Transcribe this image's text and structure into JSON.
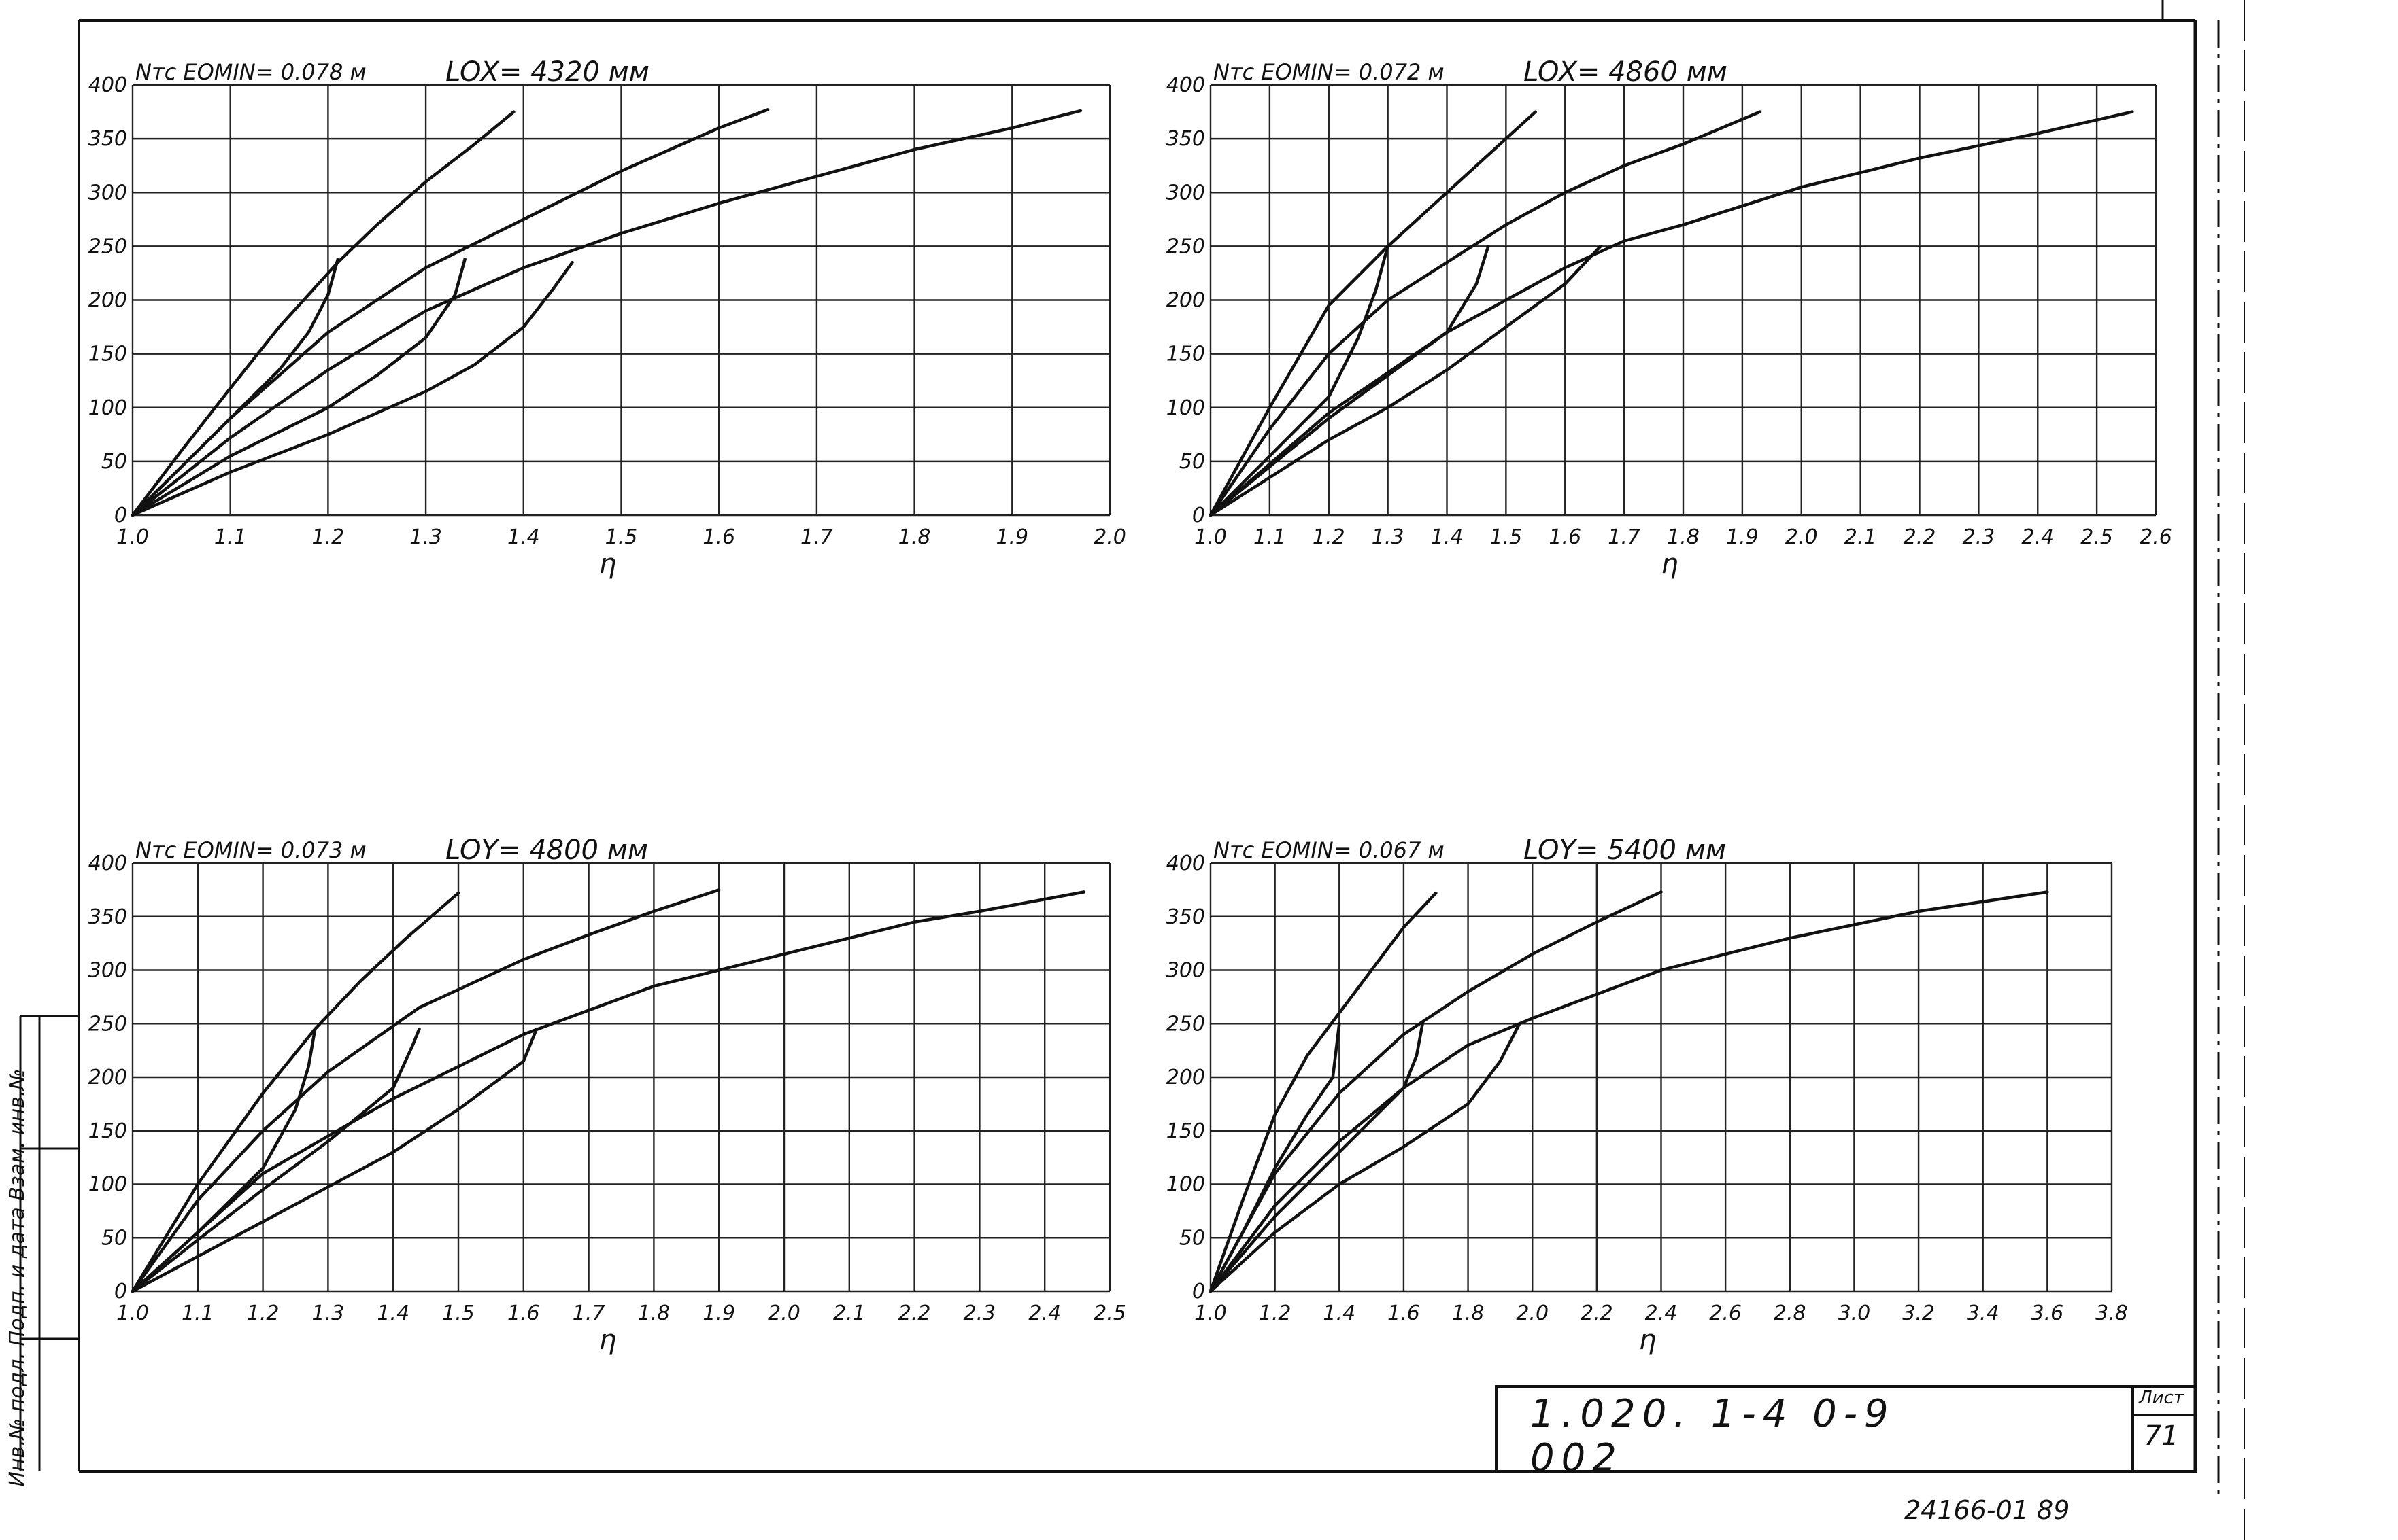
{
  "document": {
    "designation": "1.020. 1-4 0-9 002",
    "sheet_label": "Лист",
    "sheet_number": "71",
    "archive_number": "24166-01  89",
    "side_stamp": "Инв.№ подл.   Подп. и дата   Взам. инв.№"
  },
  "chart_data": [
    {
      "type": "line",
      "title": "Nтс   EOMIN= 0.078 м",
      "subtitle": "LOX= 4320 мм",
      "xlabel": "η",
      "ylabel": "",
      "xlim": [
        1.0,
        2.0
      ],
      "ylim": [
        0,
        400
      ],
      "x_ticks": [
        1.0,
        1.1,
        1.2,
        1.3,
        1.4,
        1.5,
        1.6,
        1.7,
        1.8,
        1.9,
        2.0
      ],
      "x_tick_labels": [
        "1.0",
        "1.1",
        "1.2",
        "1.3",
        "1.4",
        "1.5",
        "1.6",
        "1.7",
        "1.8",
        "1.9",
        "2.0"
      ],
      "y_ticks": [
        0,
        50,
        100,
        150,
        200,
        250,
        300,
        350,
        400
      ],
      "y_tick_labels": [
        "0",
        "50",
        "100",
        "150",
        "200",
        "250",
        "300",
        "350",
        "400"
      ],
      "grid": true,
      "series": [
        {
          "x": [
            1.0,
            1.05,
            1.1,
            1.15,
            1.21,
            1.25,
            1.3,
            1.35,
            1.39
          ],
          "y": [
            0,
            60,
            118,
            175,
            235,
            270,
            310,
            345,
            375
          ]
        },
        {
          "x": [
            1.0,
            1.1,
            1.2,
            1.3,
            1.4,
            1.5,
            1.6,
            1.65
          ],
          "y": [
            0,
            90,
            170,
            230,
            275,
            320,
            360,
            377
          ]
        },
        {
          "x": [
            1.0,
            1.1,
            1.2,
            1.3,
            1.4,
            1.5,
            1.6,
            1.7,
            1.8,
            1.9,
            1.97
          ],
          "y": [
            0,
            72,
            135,
            190,
            230,
            262,
            290,
            315,
            340,
            360,
            376
          ]
        },
        {
          "x": [
            1.0,
            1.05,
            1.1,
            1.15,
            1.18,
            1.2,
            1.21
          ],
          "y": [
            0,
            45,
            90,
            135,
            170,
            205,
            238
          ]
        },
        {
          "x": [
            1.0,
            1.1,
            1.2,
            1.25,
            1.3,
            1.33,
            1.34
          ],
          "y": [
            0,
            55,
            100,
            130,
            165,
            205,
            238
          ]
        },
        {
          "x": [
            1.0,
            1.1,
            1.2,
            1.3,
            1.35,
            1.4,
            1.43,
            1.45
          ],
          "y": [
            0,
            40,
            75,
            115,
            140,
            175,
            210,
            235
          ]
        }
      ]
    },
    {
      "type": "line",
      "title": "Nтс   EOMIN= 0.072 м",
      "subtitle": "LOX= 4860 мм",
      "xlabel": "η",
      "ylabel": "",
      "xlim": [
        1.0,
        2.6
      ],
      "ylim": [
        0,
        400
      ],
      "x_ticks": [
        1.0,
        1.1,
        1.2,
        1.3,
        1.4,
        1.5,
        1.6,
        1.7,
        1.8,
        1.9,
        2.0,
        2.1,
        2.2,
        2.3,
        2.4,
        2.5,
        2.6
      ],
      "x_tick_labels": [
        "1.0",
        "1.1",
        "1.2",
        "1.3",
        "1.4",
        "1.5",
        "1.6",
        "1.7",
        "1.8",
        "1.9",
        "2.0",
        "2.1",
        "2.2",
        "2.3",
        "2.4",
        "2.5",
        "2.6"
      ],
      "y_ticks": [
        0,
        50,
        100,
        150,
        200,
        250,
        300,
        350,
        400
      ],
      "y_tick_labels": [
        "0",
        "50",
        "100",
        "150",
        "200",
        "250",
        "300",
        "350",
        "400"
      ],
      "grid": true,
      "series": [
        {
          "x": [
            1.0,
            1.1,
            1.2,
            1.3,
            1.4,
            1.5,
            1.55
          ],
          "y": [
            0,
            100,
            195,
            250,
            300,
            350,
            375
          ]
        },
        {
          "x": [
            1.0,
            1.1,
            1.2,
            1.3,
            1.4,
            1.5,
            1.6,
            1.7,
            1.8,
            1.93
          ],
          "y": [
            0,
            80,
            150,
            200,
            235,
            270,
            300,
            325,
            345,
            375
          ]
        },
        {
          "x": [
            1.0,
            1.2,
            1.4,
            1.6,
            1.7,
            1.8,
            2.0,
            2.2,
            2.4,
            2.56
          ],
          "y": [
            0,
            95,
            170,
            230,
            255,
            270,
            305,
            332,
            355,
            375
          ]
        },
        {
          "x": [
            1.0,
            1.1,
            1.2,
            1.25,
            1.28,
            1.3
          ],
          "y": [
            0,
            55,
            110,
            165,
            210,
            250
          ]
        },
        {
          "x": [
            1.0,
            1.1,
            1.2,
            1.3,
            1.4,
            1.45,
            1.47
          ],
          "y": [
            0,
            45,
            90,
            130,
            170,
            215,
            250
          ]
        },
        {
          "x": [
            1.0,
            1.1,
            1.2,
            1.3,
            1.4,
            1.5,
            1.6,
            1.66
          ],
          "y": [
            0,
            35,
            70,
            100,
            135,
            175,
            215,
            250
          ]
        }
      ]
    },
    {
      "type": "line",
      "title": "Nтс   EOMIN= 0.073 м",
      "subtitle": "LOY= 4800 мм",
      "xlabel": "η",
      "ylabel": "",
      "xlim": [
        1.0,
        2.5
      ],
      "ylim": [
        0,
        400
      ],
      "x_ticks": [
        1.0,
        1.1,
        1.2,
        1.3,
        1.4,
        1.5,
        1.6,
        1.7,
        1.8,
        1.9,
        2.0,
        2.1,
        2.2,
        2.3,
        2.4,
        2.5
      ],
      "x_tick_labels": [
        "1.0",
        "1.1",
        "1.2",
        "1.3",
        "1.4",
        "1.5",
        "1.6",
        "1.7",
        "1.8",
        "1.9",
        "2.0",
        "2.1",
        "2.2",
        "2.3",
        "2.4",
        "2.5"
      ],
      "y_ticks": [
        0,
        50,
        100,
        150,
        200,
        250,
        300,
        350,
        400
      ],
      "y_tick_labels": [
        "0",
        "50",
        "100",
        "150",
        "200",
        "250",
        "300",
        "350",
        "400"
      ],
      "grid": true,
      "series": [
        {
          "x": [
            1.0,
            1.1,
            1.2,
            1.28,
            1.35,
            1.42,
            1.5
          ],
          "y": [
            0,
            100,
            185,
            245,
            290,
            330,
            372
          ]
        },
        {
          "x": [
            1.0,
            1.1,
            1.2,
            1.3,
            1.44,
            1.6,
            1.7,
            1.8,
            1.9
          ],
          "y": [
            0,
            85,
            150,
            205,
            265,
            310,
            333,
            355,
            375
          ]
        },
        {
          "x": [
            1.0,
            1.2,
            1.4,
            1.6,
            1.8,
            1.9,
            2.0,
            2.2,
            2.3,
            2.46
          ],
          "y": [
            0,
            110,
            180,
            240,
            285,
            300,
            315,
            345,
            355,
            373
          ]
        },
        {
          "x": [
            1.0,
            1.1,
            1.2,
            1.25,
            1.27,
            1.28
          ],
          "y": [
            0,
            55,
            115,
            170,
            210,
            245
          ]
        },
        {
          "x": [
            1.0,
            1.1,
            1.2,
            1.3,
            1.4,
            1.43,
            1.44
          ],
          "y": [
            0,
            48,
            95,
            140,
            190,
            230,
            245
          ]
        },
        {
          "x": [
            1.0,
            1.2,
            1.4,
            1.5,
            1.6,
            1.62
          ],
          "y": [
            0,
            65,
            130,
            170,
            215,
            245
          ]
        }
      ]
    },
    {
      "type": "line",
      "title": "Nтс   EOMIN= 0.067 м",
      "subtitle": "LOY= 5400 мм",
      "xlabel": "η",
      "ylabel": "",
      "xlim": [
        1.0,
        3.8
      ],
      "ylim": [
        0,
        400
      ],
      "x_ticks": [
        1.0,
        1.2,
        1.4,
        1.6,
        1.8,
        2.0,
        2.2,
        2.4,
        2.6,
        2.8,
        3.0,
        3.2,
        3.4,
        3.6,
        3.8
      ],
      "x_tick_labels": [
        "1.0",
        "1.2",
        "1.4",
        "1.6",
        "1.8",
        "2.0",
        "2.2",
        "2.4",
        "2.6",
        "2.8",
        "3.0",
        "3.2",
        "3.4",
        "3.6",
        "3.8"
      ],
      "y_ticks": [
        0,
        50,
        100,
        150,
        200,
        250,
        300,
        350,
        400
      ],
      "y_tick_labels": [
        "0",
        "50",
        "100",
        "150",
        "200",
        "250",
        "300",
        "350",
        "400"
      ],
      "grid": true,
      "series": [
        {
          "x": [
            1.0,
            1.1,
            1.2,
            1.3,
            1.4,
            1.5,
            1.6,
            1.7
          ],
          "y": [
            0,
            85,
            165,
            220,
            260,
            300,
            340,
            372
          ]
        },
        {
          "x": [
            1.0,
            1.2,
            1.4,
            1.6,
            1.8,
            2.0,
            2.2,
            2.4
          ],
          "y": [
            0,
            110,
            185,
            240,
            280,
            315,
            345,
            373
          ]
        },
        {
          "x": [
            1.0,
            1.2,
            1.4,
            1.6,
            1.8,
            2.0,
            2.4,
            2.8,
            3.2,
            3.6
          ],
          "y": [
            0,
            80,
            140,
            190,
            230,
            255,
            300,
            330,
            355,
            373
          ]
        },
        {
          "x": [
            1.0,
            1.1,
            1.2,
            1.3,
            1.38,
            1.4
          ],
          "y": [
            0,
            55,
            115,
            165,
            200,
            250
          ]
        },
        {
          "x": [
            1.0,
            1.2,
            1.4,
            1.6,
            1.64,
            1.66
          ],
          "y": [
            0,
            70,
            130,
            190,
            220,
            252
          ]
        },
        {
          "x": [
            1.0,
            1.2,
            1.4,
            1.6,
            1.8,
            1.9,
            1.96
          ],
          "y": [
            0,
            55,
            100,
            135,
            175,
            215,
            250
          ]
        }
      ]
    }
  ]
}
